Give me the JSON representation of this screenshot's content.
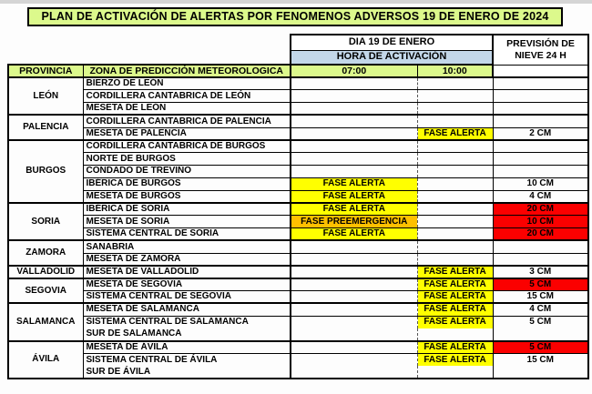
{
  "title": "PLAN DE ACTIVACIÓN DE ALERTAS POR FENOMENOS ADVERSOS 19 DE ENERO DE 2024",
  "header": {
    "day": "DIA 19 DE ENERO",
    "hour": "HORA DE ACTIVACIÓN",
    "snow_line1": "PREVISIÓN DE",
    "snow_line2": "NIEVE 24 H",
    "col_provincia": "PROVINCIA",
    "col_zona": "ZONA DE PREDICCIÓN METEOROLOGICA",
    "time1": "07:00",
    "time2": "10:00"
  },
  "colors": {
    "header_green": "#dcf98c",
    "hour_blue": "#c3d7e9",
    "alert_yellow": "#ffff00",
    "preemergencia_orange": "#ffc000",
    "snow_red": "#fb0000",
    "grid_dash_gray": "#555555"
  },
  "table": {
    "groups": [
      {
        "provincia": "LEÓN",
        "rows": [
          {
            "zona": "BIERZO DE LEÓN"
          },
          {
            "zona": "CORDILLERA CANTABRICA DE LEÓN"
          },
          {
            "zona": "MESETA DE LEÓN"
          }
        ]
      },
      {
        "provincia": "PALENCIA",
        "rows": [
          {
            "zona": "CORDILLERA CANTABRICA DE PALENCIA"
          },
          {
            "zona": "MESETA DE PALENCIA",
            "a10": {
              "label": "FASE ALERTA",
              "color": "alert_yellow"
            },
            "snow": {
              "value": "2 CM",
              "red": false
            }
          }
        ]
      },
      {
        "provincia": "BURGOS",
        "rows": [
          {
            "zona": "CORDILLERA CANTABRICA DE  BURGOS"
          },
          {
            "zona": "NORTE DE BURGOS"
          },
          {
            "zona": "CONDADO DE TREVIÑO"
          },
          {
            "zona": "IBÉRICA DE BURGOS",
            "a07": {
              "label": "FASE ALERTA",
              "color": "alert_yellow"
            },
            "snow": {
              "value": "10 CM",
              "red": false
            }
          },
          {
            "zona": "MESETA DE BURGOS",
            "a07": {
              "label": "FASE ALERTA",
              "color": "alert_yellow"
            },
            "snow": {
              "value": "4 CM",
              "red": false
            }
          }
        ]
      },
      {
        "provincia": "SORIA",
        "rows": [
          {
            "zona": "IBÉRICA DE SORIA",
            "a07": {
              "label": "FASE ALERTA",
              "color": "alert_yellow"
            },
            "snow": {
              "value": "20 CM",
              "red": true
            }
          },
          {
            "zona": "MESETA DE SORIA",
            "a07": {
              "label": "FASE PREEMERGENCIA",
              "color": "preemergencia_orange"
            },
            "snow": {
              "value": "10 CM",
              "red": true
            }
          },
          {
            "zona": "SISTEMA CENTRAL DE SORIA",
            "a07": {
              "label": "FASE ALERTA",
              "color": "alert_yellow"
            },
            "snow": {
              "value": "20 CM",
              "red": true
            }
          }
        ]
      },
      {
        "provincia": "ZAMORA",
        "rows": [
          {
            "zona": "SANABRIA"
          },
          {
            "zona": "MESETA DE ZAMORA"
          }
        ]
      },
      {
        "provincia": "VALLADOLID",
        "rows": [
          {
            "zona": "MESETA DE VALLADOLID",
            "a10": {
              "label": "FASE ALERTA",
              "color": "alert_yellow"
            },
            "snow": {
              "value": "3 CM",
              "red": false
            }
          }
        ]
      },
      {
        "provincia": "SEGOVIA",
        "rows": [
          {
            "zona": "MESETA DE SEGOVIA",
            "a10": {
              "label": "FASE ALERTA",
              "color": "alert_yellow"
            },
            "snow": {
              "value": "5 CM",
              "red": true
            }
          },
          {
            "zona": "SISTEMA CENTRAL DE SEGOVIA",
            "a10": {
              "label": "FASE ALERTA",
              "color": "alert_yellow"
            },
            "snow": {
              "value": "15 CM",
              "red": false
            }
          }
        ]
      },
      {
        "provincia": "SALAMANCA",
        "rows": [
          {
            "zona": "MESETA DE SALAMANCA",
            "a10": {
              "label": "FASE ALERTA",
              "color": "alert_yellow"
            },
            "snow": {
              "value": "4 CM",
              "red": false
            }
          },
          {
            "zona": "SISTEMA CENTRAL DE SALAMANCA",
            "a10": {
              "label": "FASE ALERTA",
              "color": "alert_yellow"
            },
            "snow": {
              "value": "5 CM",
              "red": false
            }
          },
          {
            "zona": "SUR DE SALAMANCA",
            "joined": true
          }
        ]
      },
      {
        "provincia": "ÁVILA",
        "rows": [
          {
            "zona": "MESETA DE ÁVILA",
            "a10": {
              "label": "FASE ALERTA",
              "color": "alert_yellow"
            },
            "snow": {
              "value": "5 CM",
              "red": true
            }
          },
          {
            "zona": "SISTEMA CENTRAL DE ÁVILA",
            "a10": {
              "label": "FASE ALERTA",
              "color": "alert_yellow"
            },
            "snow": {
              "value": "15 CM",
              "red": false
            }
          },
          {
            "zona": "SUR DE ÁVILA",
            "joined": true
          }
        ]
      }
    ]
  }
}
